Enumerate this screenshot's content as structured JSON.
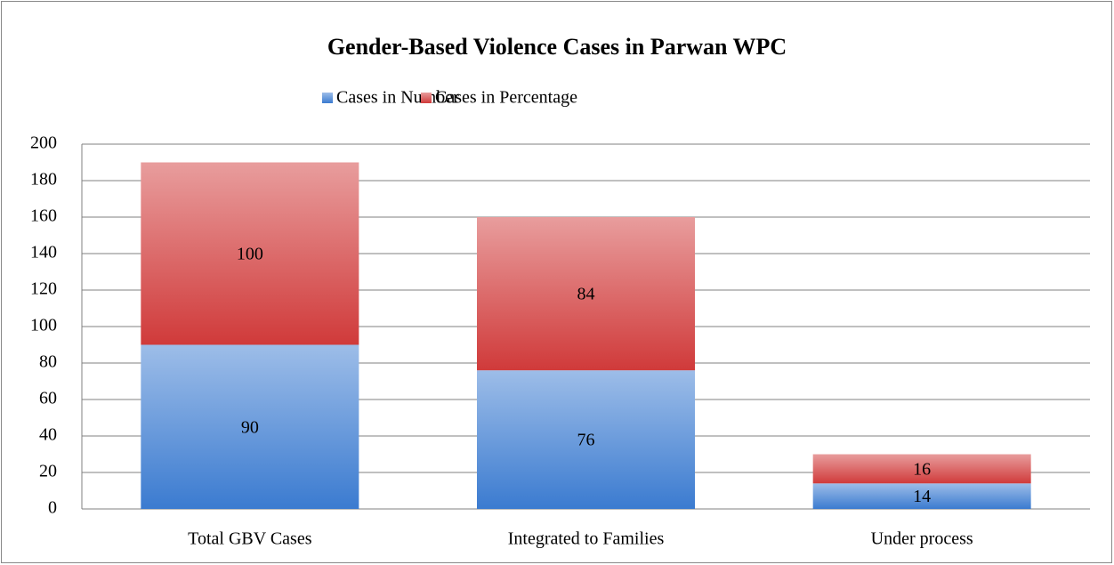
{
  "chart_data": {
    "type": "bar",
    "stacked": true,
    "title": "Gender-Based Violence Cases in Parwan WPC",
    "categories": [
      "Total GBV Cases",
      "Integrated to Families",
      "Under process"
    ],
    "series": [
      {
        "name": "Cases in Number",
        "color": "#3b7bd0",
        "values": [
          90,
          76,
          14
        ]
      },
      {
        "name": "Cases in Percentage",
        "color": "#d03a3a",
        "values": [
          100,
          84,
          16
        ]
      }
    ],
    "ylim": [
      0,
      200
    ],
    "yticks": [
      0,
      20,
      40,
      60,
      80,
      100,
      120,
      140,
      160,
      180,
      200
    ],
    "grid": true,
    "legend": "top"
  }
}
